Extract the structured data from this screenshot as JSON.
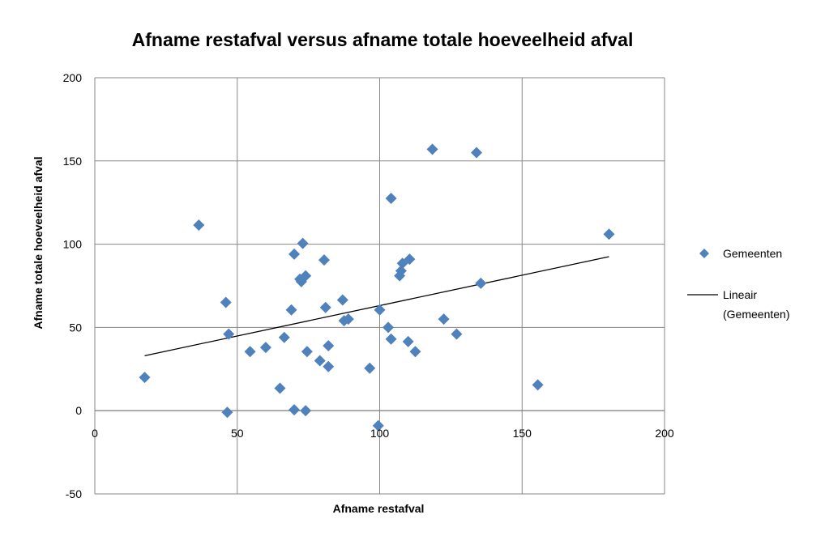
{
  "chart_data": {
    "type": "scatter",
    "title": "Afname restafval versus afname totale hoeveelheid afval",
    "xlabel": "Afname restafval",
    "ylabel": "Afname totale hoeveelheid afval",
    "xlim": [
      0,
      200
    ],
    "ylim": [
      -50,
      200
    ],
    "xticks": [
      "0",
      "50",
      "100",
      "150",
      "200"
    ],
    "yticks": [
      "-50",
      "0",
      "50",
      "100",
      "150",
      "200"
    ],
    "grid": true,
    "legend_position": "right",
    "legend": {
      "series_label": "Gemeenten",
      "trend_label_line1": "Lineair",
      "trend_label_line2": "(Gemeenten)"
    },
    "series": [
      {
        "name": "Gemeenten",
        "color": "#4f81bd",
        "marker": "diamond",
        "points": [
          [
            17.5,
            20
          ],
          [
            36.5,
            111.5
          ],
          [
            46,
            65
          ],
          [
            46.5,
            -1
          ],
          [
            47,
            46
          ],
          [
            54.5,
            35.5
          ],
          [
            60,
            38
          ],
          [
            65,
            13.5
          ],
          [
            66.5,
            44
          ],
          [
            69,
            60.5
          ],
          [
            70,
            94
          ],
          [
            70,
            0.5
          ],
          [
            72,
            79
          ],
          [
            72.5,
            77.5
          ],
          [
            73,
            100.5
          ],
          [
            74,
            81
          ],
          [
            74,
            0
          ],
          [
            74.5,
            35.5
          ],
          [
            79,
            30
          ],
          [
            80.5,
            90.5
          ],
          [
            81,
            62
          ],
          [
            82,
            39
          ],
          [
            82,
            26.5
          ],
          [
            87,
            66.5
          ],
          [
            87.5,
            54
          ],
          [
            89,
            55
          ],
          [
            96.5,
            25.5
          ],
          [
            99.5,
            -9
          ],
          [
            100,
            60.5
          ],
          [
            103,
            50
          ],
          [
            104,
            43
          ],
          [
            104,
            127.5
          ],
          [
            107,
            81
          ],
          [
            107.5,
            84
          ],
          [
            108,
            88.5
          ],
          [
            110,
            41.5
          ],
          [
            110.5,
            91
          ],
          [
            112.5,
            35.5
          ],
          [
            118.5,
            157
          ],
          [
            122.5,
            55
          ],
          [
            127,
            46
          ],
          [
            134,
            155
          ],
          [
            135.5,
            76.5
          ],
          [
            155.5,
            15.5
          ],
          [
            180.5,
            106
          ]
        ]
      }
    ],
    "trendline": {
      "name": "Lineair (Gemeenten)",
      "type": "linear",
      "color": "#000000",
      "x_start": 17.5,
      "y_start": 33,
      "x_end": 180.5,
      "y_end": 92.5
    }
  }
}
